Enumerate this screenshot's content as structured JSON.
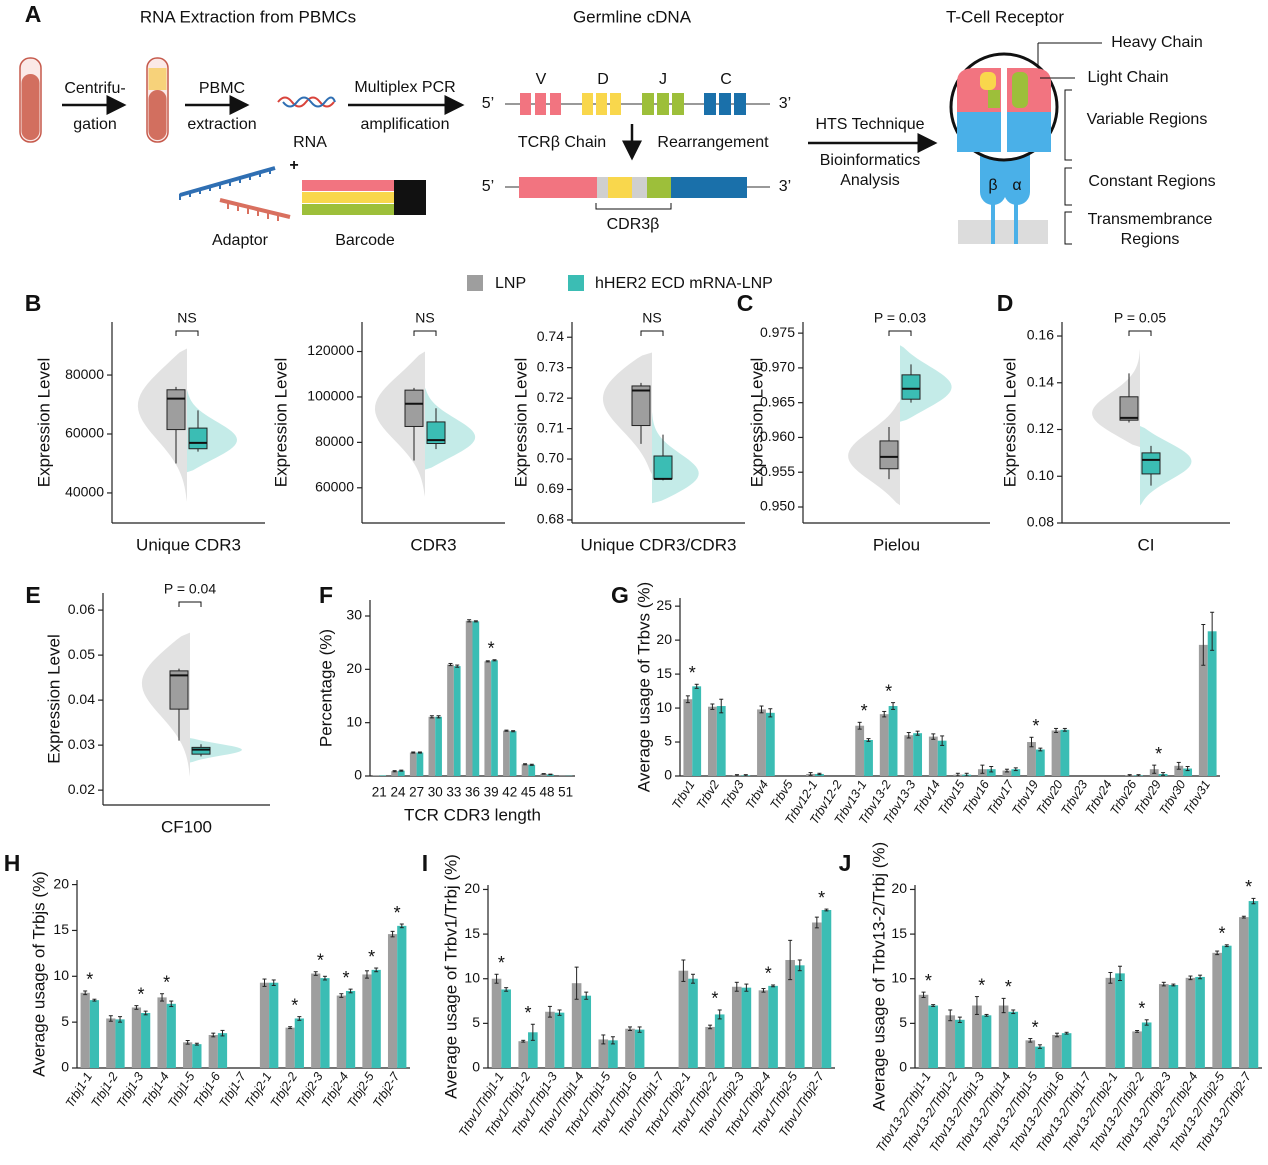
{
  "diagram": {
    "label": "A",
    "extraction_title": "RNA Extraction from PBMCs",
    "cdna_title": "Germline cDNA",
    "receptor_title": "T-Cell Receptor",
    "step1": [
      "Centrifu-",
      "gation"
    ],
    "step2": [
      "PBMC",
      "extraction"
    ],
    "rna": "RNA",
    "plus": "+",
    "step3": [
      "Multiplex PCR",
      "amplification"
    ],
    "adaptor": "Adaptor",
    "barcode": "Barcode",
    "five_prime": "5’",
    "three_prime": "3’",
    "segments": [
      "V",
      "D",
      "J",
      "C"
    ],
    "chain": "TCRβ Chain",
    "rearrangement": "Rearrangement",
    "cdr3": "CDR3β",
    "step4": [
      "HTS Technique",
      "Bioinformatics",
      "Analysis"
    ],
    "heavy": "Heavy Chain",
    "light": "Light Chain",
    "variable": "Variable Regions",
    "constant": "Constant Regions",
    "transmembrane": [
      "Transmembrance",
      "Regions"
    ],
    "beta": "β",
    "alpha": "α"
  },
  "legend": [
    {
      "name": "LNP",
      "color": "#9e9e9e"
    },
    {
      "name": "hHER2 ECD mRNA-LNP",
      "color": "#3bbdb4"
    }
  ],
  "chart_data": [
    {
      "type": "box",
      "panel_label": "B",
      "x_label": "Unique CDR3",
      "y_label": "Expression Level",
      "bracket_label": "NS",
      "ylim": [
        29800,
        98000
      ],
      "yticks": [
        40000,
        60000,
        80000
      ],
      "groups": [
        {
          "min": 50000,
          "q1": 61500,
          "median": 72000,
          "q3": 75000,
          "max": 76000
        },
        {
          "min": 54000,
          "q1": 55000,
          "median": 57000,
          "q3": 62000,
          "max": 68000
        }
      ]
    },
    {
      "type": "box",
      "x_label": "CDR3",
      "y_label": "Expression Level",
      "bracket_label": "NS",
      "ylim": [
        44500,
        133000
      ],
      "yticks": [
        60000,
        80000,
        100000,
        120000
      ],
      "groups": [
        {
          "min": 72000,
          "q1": 87000,
          "median": 97000,
          "q3": 103000,
          "max": 104000
        },
        {
          "min": 77000,
          "q1": 79500,
          "median": 81000,
          "q3": 89000,
          "max": 95000
        }
      ]
    },
    {
      "type": "box",
      "x_label": "Unique CDR3/CDR3",
      "y_label": "Expression Level",
      "bracket_label": "NS",
      "ylim": [
        0.679,
        0.745
      ],
      "yticks": [
        0.68,
        0.69,
        {
          "value": 0.7,
          "label": "0.70"
        },
        0.71,
        0.72,
        0.73,
        0.74
      ],
      "groups": [
        {
          "min": 0.705,
          "q1": 0.711,
          "median": 0.7225,
          "q3": 0.724,
          "max": 0.725
        },
        {
          "min": 0.693,
          "q1": 0.6935,
          "median": 0.6935,
          "q3": 0.701,
          "max": 0.708
        }
      ]
    },
    {
      "type": "box",
      "panel_label": "C",
      "x_label": "Pielou",
      "y_label": "Expression Level",
      "bracket_label": "P = 0.03",
      "ylim": [
        0.9477,
        0.9766
      ],
      "yticks": [
        {
          "value": 0.95,
          "label": "0.950"
        },
        0.955,
        {
          "value": 0.96,
          "label": "0.960"
        },
        0.965,
        {
          "value": 0.97,
          "label": "0.970"
        },
        0.975
      ],
      "groups": [
        {
          "min": 0.954,
          "q1": 0.9555,
          "median": 0.9572,
          "q3": 0.9595,
          "max": 0.9615
        },
        {
          "min": 0.965,
          "q1": 0.9655,
          "median": 0.967,
          "q3": 0.969,
          "max": 0.9705
        }
      ]
    },
    {
      "type": "box",
      "panel_label": "D",
      "x_label": "CI",
      "y_label": "Expression Level",
      "bracket_label": "P = 0.05",
      "ylim": [
        0.08,
        0.166
      ],
      "yticks": [
        0.08,
        {
          "value": 0.1,
          "label": "0.10"
        },
        0.12,
        0.14,
        0.16
      ],
      "groups": [
        {
          "min": 0.123,
          "q1": 0.124,
          "median": 0.125,
          "q3": 0.134,
          "max": 0.144
        },
        {
          "min": 0.096,
          "q1": 0.101,
          "median": 0.107,
          "q3": 0.11,
          "max": 0.113
        }
      ]
    },
    {
      "type": "box",
      "panel_label": "E",
      "x_label": "CF100",
      "y_label": "Expression Level",
      "bracket_label": "P = 0.04",
      "ylim": [
        0.0167,
        0.0638
      ],
      "yticks": [
        0.02,
        0.03,
        0.04,
        0.05,
        0.06
      ],
      "groups": [
        {
          "min": 0.031,
          "q1": 0.038,
          "median": 0.0455,
          "q3": 0.0465,
          "max": 0.047
        },
        {
          "min": 0.0275,
          "q1": 0.028,
          "median": 0.029,
          "q3": 0.0295,
          "max": 0.0302
        }
      ]
    },
    {
      "type": "bar",
      "panel_label": "F",
      "x_label": "TCR CDR3 length",
      "y_label": "Percentage (%)",
      "ylim": [
        0,
        33
      ],
      "yticks": [
        0,
        10,
        20,
        30
      ],
      "categories": [
        "21",
        "24",
        "27",
        "30",
        "33",
        "36",
        "39",
        "42",
        "45",
        "48",
        "51"
      ],
      "series": [
        {
          "values": [
            0.1,
            0.9,
            4.4,
            11.1,
            20.9,
            29.1,
            21.5,
            8.5,
            2.2,
            0.4,
            0.05
          ],
          "errors": [
            0,
            0.1,
            0.1,
            0.2,
            0.2,
            0.2,
            0.1,
            0.1,
            0.1,
            0.05,
            0
          ]
        },
        {
          "values": [
            0.1,
            1.0,
            4.4,
            11.1,
            20.6,
            29.0,
            21.7,
            8.4,
            2.1,
            0.3,
            0.05
          ],
          "errors": [
            0,
            0.1,
            0.1,
            0.2,
            0.2,
            0.1,
            0.1,
            0.1,
            0.1,
            0.05,
            0
          ]
        }
      ],
      "annotations": [
        {
          "category": "39",
          "text": "*"
        }
      ]
    },
    {
      "type": "bar",
      "panel_label": "G",
      "y_label": "Average usage of Trbvs (%)",
      "ylim": [
        0,
        26.2
      ],
      "yticks": [
        0,
        5,
        10,
        15,
        20,
        25
      ],
      "categories": [
        "Trbv1",
        "Trbv2",
        "Trbv3",
        "Trbv4",
        "Trbv5",
        "Trbv12-1",
        "Trbv12-2",
        "Trbv13-1",
        "Trbv13-2",
        "Trbv13-3",
        "Trbv14",
        "Trbv15",
        "Trbv16",
        "Trbv17",
        "Trbv19",
        "Trbv20",
        "Trbv23",
        "Trbv24",
        "Trbv26",
        "Trbv29",
        "Trbv30",
        "Trbv31"
      ],
      "series": [
        {
          "values": [
            11.3,
            10.2,
            0.1,
            9.8,
            0,
            0.3,
            0,
            7.4,
            9.1,
            6.0,
            5.8,
            0.2,
            1.0,
            0.8,
            5.0,
            6.7,
            0,
            0,
            0.1,
            1.0,
            1.5,
            19.3
          ],
          "errors": [
            0.5,
            0.4,
            0.1,
            0.5,
            0,
            0.2,
            0,
            0.5,
            0.4,
            0.4,
            0.4,
            0.2,
            0.6,
            0.2,
            0.7,
            0.3,
            0,
            0,
            0.1,
            0.6,
            0.5,
            3.0
          ]
        },
        {
          "values": [
            13.2,
            10.3,
            0.1,
            9.3,
            0,
            0.3,
            0,
            5.3,
            10.3,
            6.3,
            5.2,
            0.2,
            1.0,
            1.0,
            3.9,
            6.8,
            0,
            0,
            0.1,
            0.3,
            1.1,
            21.3
          ],
          "errors": [
            0.3,
            1.0,
            0.1,
            0.6,
            0,
            0.1,
            0,
            0.2,
            0.5,
            0.3,
            0.7,
            0.2,
            0.4,
            0.2,
            0.2,
            0.2,
            0,
            0,
            0.1,
            0.2,
            0.3,
            2.8
          ]
        }
      ],
      "annotations": [
        {
          "category": "Trbv1",
          "text": "*"
        },
        {
          "category": "Trbv13-1",
          "text": "*"
        },
        {
          "category": "Trbv13-2",
          "text": "*"
        },
        {
          "category": "Trbv19",
          "text": "*"
        },
        {
          "category": "Trbv29",
          "text": "*"
        }
      ]
    },
    {
      "type": "bar",
      "panel_label": "H",
      "y_label": "Average usage of Trbjs (%)",
      "ylim": [
        0,
        20.5
      ],
      "yticks": [
        0,
        5,
        10,
        15,
        20
      ],
      "categories": [
        "Trbj1-1",
        "Trbj1-2",
        "Trbj1-3",
        "Trbj1-4",
        "Trbj1-5",
        "Trbj1-6",
        "Trbj1-7",
        "Trbj2-1",
        "Trbj2-2",
        "Trbj2-3",
        "Trbj2-4",
        "Trbj2-5",
        "Trbj2-7"
      ],
      "series": [
        {
          "values": [
            8.2,
            5.4,
            6.6,
            7.7,
            2.8,
            3.6,
            0,
            9.3,
            4.4,
            10.3,
            7.9,
            10.2,
            14.6
          ],
          "errors": [
            0.2,
            0.3,
            0.2,
            0.4,
            0.2,
            0.2,
            0,
            0.4,
            0.1,
            0.2,
            0.2,
            0.4,
            0.3
          ]
        },
        {
          "values": [
            7.4,
            5.3,
            6.0,
            7.0,
            2.6,
            3.8,
            0,
            9.3,
            5.4,
            9.8,
            8.4,
            10.7,
            15.5
          ],
          "errors": [
            0.1,
            0.3,
            0.2,
            0.3,
            0.1,
            0.3,
            0,
            0.3,
            0.2,
            0.2,
            0.2,
            0.2,
            0.2
          ]
        }
      ],
      "annotations": [
        {
          "category": "Trbj1-1",
          "text": "*"
        },
        {
          "category": "Trbj1-3",
          "text": "*"
        },
        {
          "category": "Trbj1-4",
          "text": "*"
        },
        {
          "category": "Trbj2-2",
          "text": "*"
        },
        {
          "category": "Trbj2-3",
          "text": "*"
        },
        {
          "category": "Trbj2-4",
          "text": "*"
        },
        {
          "category": "Trbj2-5",
          "text": "*"
        },
        {
          "category": "Trbj2-7",
          "text": "*"
        }
      ]
    },
    {
      "type": "bar",
      "panel_label": "I",
      "y_label": "Average usage of Trbv1/Trbj (%)",
      "ylim": [
        0,
        20.5
      ],
      "yticks": [
        0,
        5,
        10,
        15,
        20
      ],
      "categories": [
        "Trbv1/Trbj1-1",
        "Trbv1/Trbj1-2",
        "Trbv1/Trbj1-3",
        "Trbv1/Trbj1-4",
        "Trbv1/Trbj1-5",
        "Trbv1/Trbj1-6",
        "Trbv1/Trbj1-7",
        "Trbv1/Trbj2-1",
        "Trbv1/Trbj2-2",
        "Trbv1/Trbj2-3",
        "Trbv1/Trbj2-4",
        "Trbv1/Trbj2-5",
        "Trbv1/Trbj2-7"
      ],
      "series": [
        {
          "values": [
            10.0,
            3.0,
            6.3,
            9.5,
            3.2,
            4.4,
            0,
            10.9,
            4.6,
            9.1,
            8.7,
            12.1,
            16.3
          ],
          "errors": [
            0.5,
            0.1,
            0.6,
            1.8,
            0.5,
            0.2,
            0,
            1.2,
            0.2,
            0.5,
            0.2,
            2.2,
            0.6
          ]
        },
        {
          "values": [
            8.8,
            4.0,
            6.2,
            8.1,
            3.1,
            4.3,
            0,
            10.0,
            6.0,
            9.0,
            9.2,
            11.5,
            17.7
          ],
          "errors": [
            0.2,
            0.9,
            0.3,
            0.4,
            0.4,
            0.3,
            0,
            0.5,
            0.5,
            0.4,
            0.1,
            0.6,
            0.1
          ]
        }
      ],
      "annotations": [
        {
          "category": "Trbv1/Trbj1-1",
          "text": "*"
        },
        {
          "category": "Trbv1/Trbj1-2",
          "text": "*"
        },
        {
          "category": "Trbv1/Trbj2-2",
          "text": "*"
        },
        {
          "category": "Trbv1/Trbj2-4",
          "text": "*"
        },
        {
          "category": "Trbv1/Trbj2-7",
          "text": "*"
        }
      ]
    },
    {
      "type": "bar",
      "panel_label": "J",
      "y_label": "Average usage of Trbv13-2/Trbj (%)",
      "ylim": [
        0,
        20.5
      ],
      "yticks": [
        0,
        5,
        10,
        15,
        20
      ],
      "categories": [
        "Trbv13-2/Trbj1-1",
        "Trbv13-2/Trbj1-2",
        "Trbv13-2/Trbj1-3",
        "Trbv13-2/Trbj1-4",
        "Trbv13-2/Trbj1-5",
        "Trbv13-2/Trbj1-6",
        "Trbv13-2/Trbj1-7",
        "Trbv13-2/Trbj2-1",
        "Trbv13-2/Trbj2-2",
        "Trbv13-2/Trbj2-3",
        "Trbv13-2/Trbj2-4",
        "Trbv13-2/Trbj2-5",
        "Trbv13-2/Trbj2-7"
      ],
      "series": [
        {
          "values": [
            8.2,
            5.9,
            7.0,
            7.0,
            3.1,
            3.7,
            0,
            10.1,
            4.1,
            9.4,
            10.1,
            12.9,
            16.9
          ],
          "errors": [
            0.3,
            0.6,
            1.0,
            0.8,
            0.2,
            0.2,
            0,
            0.6,
            0.1,
            0.2,
            0.2,
            0.2,
            0.1
          ]
        },
        {
          "values": [
            7.0,
            5.4,
            5.9,
            6.3,
            2.4,
            3.9,
            0,
            10.6,
            5.1,
            9.3,
            10.2,
            13.7,
            18.7
          ],
          "errors": [
            0.1,
            0.3,
            0.1,
            0.2,
            0.2,
            0.1,
            0,
            0.8,
            0.3,
            0.1,
            0.2,
            0.1,
            0.3
          ]
        }
      ],
      "annotations": [
        {
          "category": "Trbv13-2/Trbj1-1",
          "text": "*"
        },
        {
          "category": "Trbv13-2/Trbj1-3",
          "text": "*"
        },
        {
          "category": "Trbv13-2/Trbj1-4",
          "text": "*"
        },
        {
          "category": "Trbv13-2/Trbj1-5",
          "text": "*"
        },
        {
          "category": "Trbv13-2/Trbj2-2",
          "text": "*"
        },
        {
          "category": "Trbv13-2/Trbj2-5",
          "text": "*"
        },
        {
          "category": "Trbv13-2/Trbj2-7",
          "text": "*"
        }
      ]
    }
  ]
}
